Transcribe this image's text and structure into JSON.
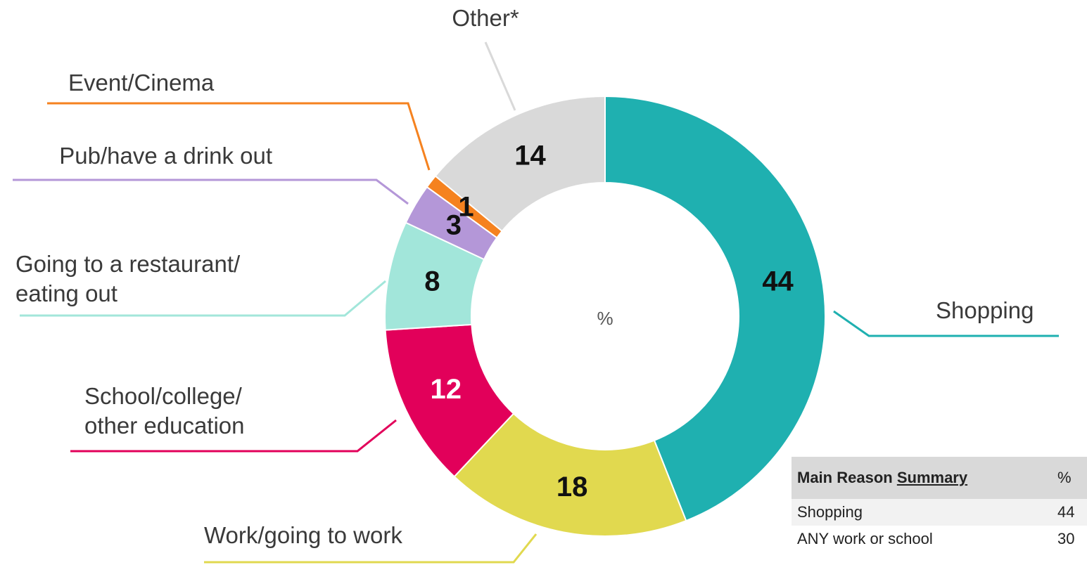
{
  "chart_data": {
    "type": "donut",
    "center_label": "%",
    "categories": [
      "Shopping",
      "Work/going to work",
      "School/college/\nother education",
      "Going to a restaurant/\neating out",
      "Pub/have a drink out",
      "Event/Cinema",
      "Other*"
    ],
    "values": [
      44,
      18,
      12,
      8,
      3,
      1,
      14
    ],
    "colors": [
      "#1fb0b0",
      "#e1d94f",
      "#e2005a",
      "#a2e6da",
      "#b497d8",
      "#f5821f",
      "#d9d9d9"
    ]
  },
  "table": {
    "header": {
      "text": "Main Reason",
      "underlined": "Summary",
      "value_column": "%"
    },
    "rows": [
      [
        "Shopping",
        "44"
      ],
      [
        "ANY work or school",
        "30"
      ]
    ]
  }
}
